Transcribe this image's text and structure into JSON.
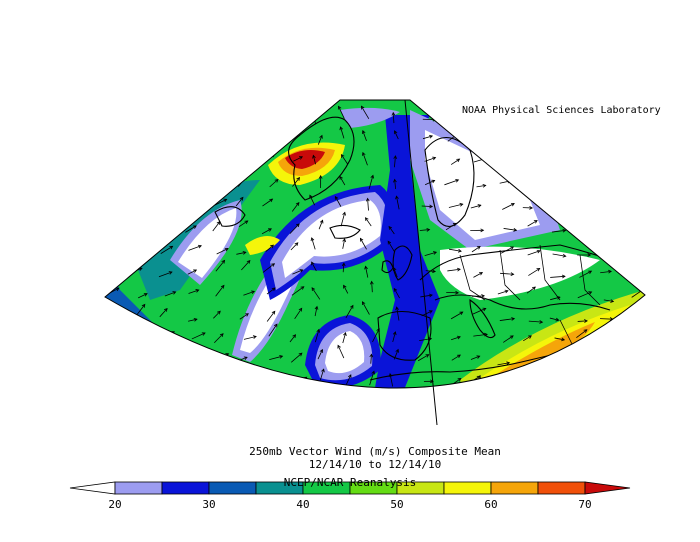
{
  "header": {
    "credit": "NOAA Physical Sciences Laboratory"
  },
  "caption": {
    "line1": "250mb Vector Wind (m/s) Composite Mean",
    "line2": "12/14/10  to 12/14/10",
    "source": "NCEP/NCAR Reanalysis"
  },
  "colorbar": {
    "ticks": [
      "20",
      "30",
      "40",
      "50",
      "60",
      "70"
    ],
    "colors": [
      "#ffffff",
      "#9c9cf0",
      "#0a14d8",
      "#0a5ab4",
      "#0a9090",
      "#14c846",
      "#64dc14",
      "#c8e614",
      "#f5f50a",
      "#f5a50a",
      "#f0500a",
      "#c80a0a"
    ]
  },
  "palette": {
    "below20": "#ffffff",
    "c20_25": "#9c9cf0",
    "c25_30": "#0a14d8",
    "c30_35": "#0a5ab4",
    "c35_40": "#0a9090",
    "c40_45": "#14c846",
    "c45_50": "#64dc14",
    "c50_55": "#c8e614",
    "c55_60": "#f5f50a",
    "c60_65": "#f5a50a",
    "c65_70": "#f0500a",
    "above70": "#c80a0a"
  }
}
